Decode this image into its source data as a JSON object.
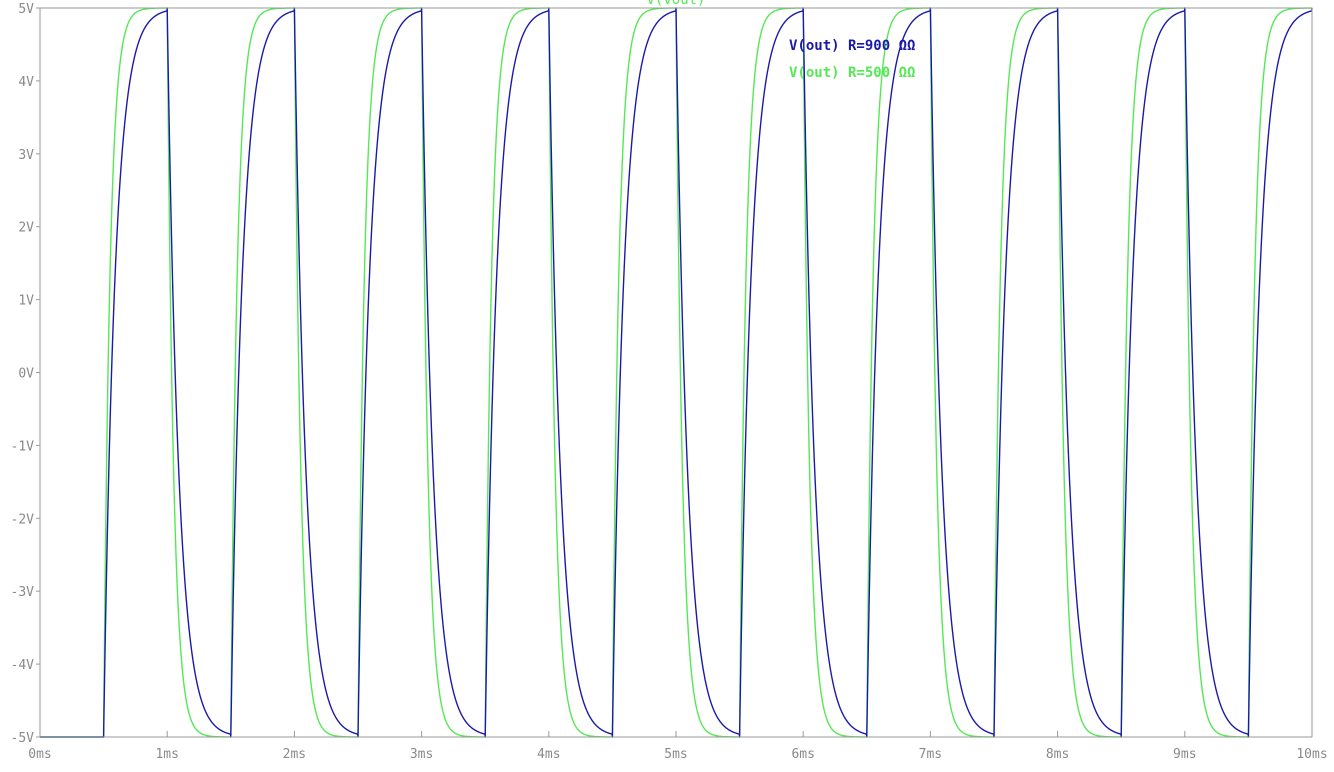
{
  "chart_data": {
    "type": "line",
    "title": "V(vout)",
    "xlabel": "",
    "ylabel": "",
    "xlim": [
      0,
      10
    ],
    "ylim": [
      -5,
      5
    ],
    "x_unit": "ms",
    "y_unit": "V",
    "x_ticks": [
      "0ms",
      "1ms",
      "2ms",
      "3ms",
      "4ms",
      "5ms",
      "6ms",
      "7ms",
      "8ms",
      "9ms",
      "10ms"
    ],
    "y_ticks": [
      "5V",
      "4V",
      "3V",
      "2V",
      "1V",
      "0V",
      "-1V",
      "-2V",
      "-3V",
      "-4V",
      "-5V"
    ],
    "grid": false,
    "legend_position": "top-center",
    "waveform": {
      "shape": "square-wave RC response",
      "period_ms": 1.0,
      "first_rise_ms": 0.5,
      "low_V": -5,
      "high_V": 5
    },
    "series": [
      {
        "name": "V(out) R=900 ΩΩ",
        "color": "#1a1aaa",
        "time_constant_ms": 0.09
      },
      {
        "name": "V(out) R=500 ΩΩ",
        "color": "#55e855",
        "time_constant_ms": 0.05
      }
    ]
  }
}
